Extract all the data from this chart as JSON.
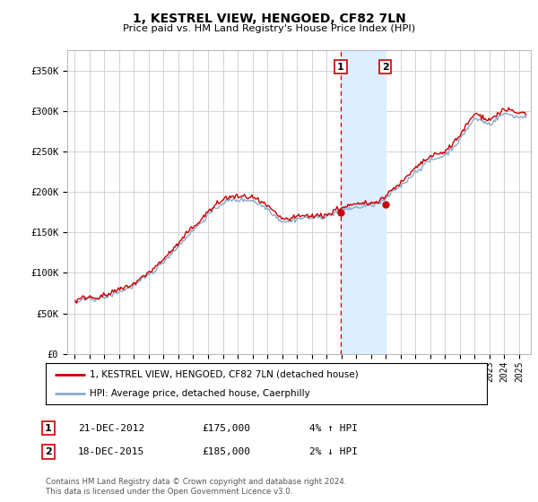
{
  "title": "1, KESTREL VIEW, HENGOED, CF82 7LN",
  "subtitle": "Price paid vs. HM Land Registry's House Price Index (HPI)",
  "ytick_labels": [
    "£0",
    "£50K",
    "£100K",
    "£150K",
    "£200K",
    "£250K",
    "£300K",
    "£350K"
  ],
  "yticks": [
    0,
    50000,
    100000,
    150000,
    200000,
    250000,
    300000,
    350000
  ],
  "ylim": [
    0,
    375000
  ],
  "xlim_left": 1994.5,
  "xlim_right": 2025.8,
  "legend_line1": "1, KESTREL VIEW, HENGOED, CF82 7LN (detached house)",
  "legend_line2": "HPI: Average price, detached house, Caerphilly",
  "line1_color": "#cc0000",
  "line2_color": "#88aacc",
  "shade_color": "#ddeeff",
  "grid_color": "#cccccc",
  "background_color": "#ffffff",
  "marker1_x": 2012.958,
  "marker2_x": 2015.958,
  "marker1_price": 175000,
  "marker2_price": 185000,
  "footnote1": "Contains HM Land Registry data © Crown copyright and database right 2024.",
  "footnote2": "This data is licensed under the Open Government Licence v3.0.",
  "ann1_date": "21-DEC-2012",
  "ann1_price": "£175,000",
  "ann1_hpi": "4% ↑ HPI",
  "ann2_date": "18-DEC-2015",
  "ann2_price": "£185,000",
  "ann2_hpi": "2% ↓ HPI",
  "noise_seed": 42,
  "noise_scale_hpi": 3500,
  "noise_scale_price": 4000
}
